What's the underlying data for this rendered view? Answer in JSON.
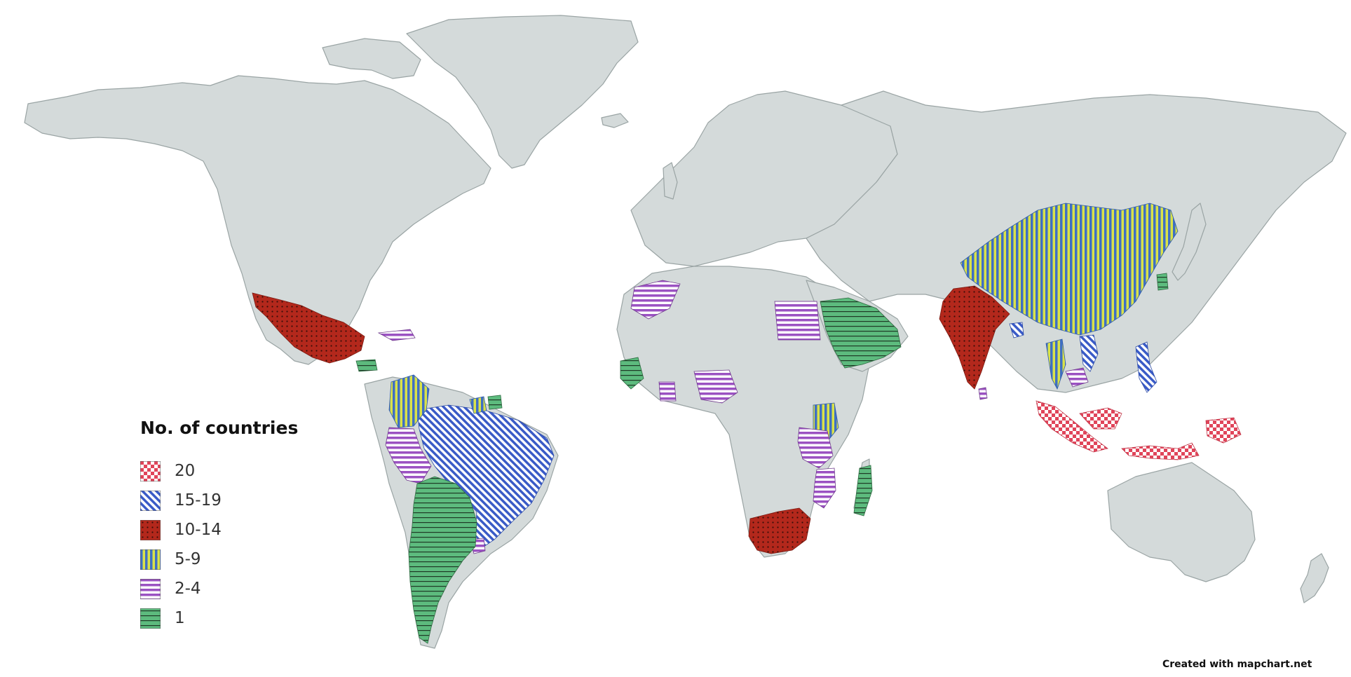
{
  "legend": {
    "title": "No. of countries",
    "items": [
      {
        "label": "20",
        "pattern": "checker",
        "color": "#e0455a"
      },
      {
        "label": "15-19",
        "pattern": "diagonal-stripes",
        "color": "#3a5bc7"
      },
      {
        "label": "10-14",
        "pattern": "dots",
        "color": "#b3281c"
      },
      {
        "label": "5-9",
        "pattern": "vertical-stripes",
        "color": "#3f6fc4"
      },
      {
        "label": "2-4",
        "pattern": "horizontal-stripes",
        "color": "#9b52c2"
      },
      {
        "label": "1",
        "pattern": "horizontal-lines",
        "color": "#5dbb7e"
      }
    ]
  },
  "credit": "Created with mapchart.net",
  "colors": {
    "land": "#d4dada",
    "border": "#9aa4a4",
    "background": "#ffffff"
  },
  "regions": {
    "20": [
      "Indonesia",
      "Malaysia"
    ],
    "15-19": [
      "Brazil",
      "Philippines",
      "Vietnam",
      "Bangladesh"
    ],
    "10-14": [
      "Mexico",
      "India",
      "South Africa"
    ],
    "5-9": [
      "China",
      "Colombia",
      "Kenya",
      "Thailand",
      "Guyana"
    ],
    "2-4": [
      "Peru",
      "Morocco",
      "Egypt",
      "Nigeria",
      "Ghana",
      "Tanzania",
      "Mozambique",
      "Cambodia",
      "Cuba",
      "Uruguay",
      "Sri Lanka"
    ],
    "1": [
      "Argentina",
      "Chile",
      "Saudi Arabia",
      "Madagascar",
      "Sierra Leone",
      "Honduras",
      "South Korea",
      "Suriname"
    ]
  }
}
